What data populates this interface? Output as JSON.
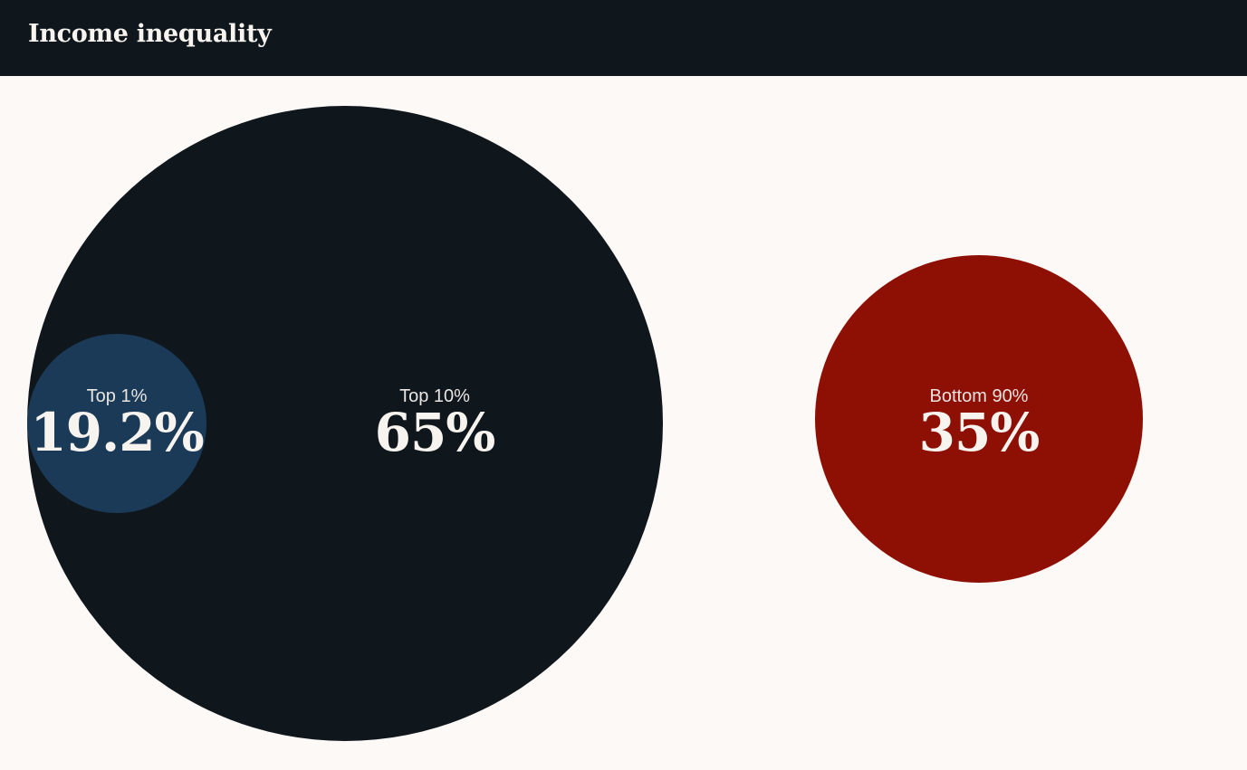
{
  "header": {
    "title": "Income inequality"
  },
  "chart_data": {
    "type": "bubble",
    "title": "Income inequality",
    "series": [
      {
        "label": "Top 10%",
        "value_text": "65%",
        "value": 65,
        "color": "#0f161c"
      },
      {
        "label": "Top 1%",
        "value_text": "19.2%",
        "value": 19.2,
        "color": "#1a3a57"
      },
      {
        "label": "Bottom 90%",
        "value_text": "35%",
        "value": 35,
        "color": "#8e0f04"
      }
    ]
  }
}
